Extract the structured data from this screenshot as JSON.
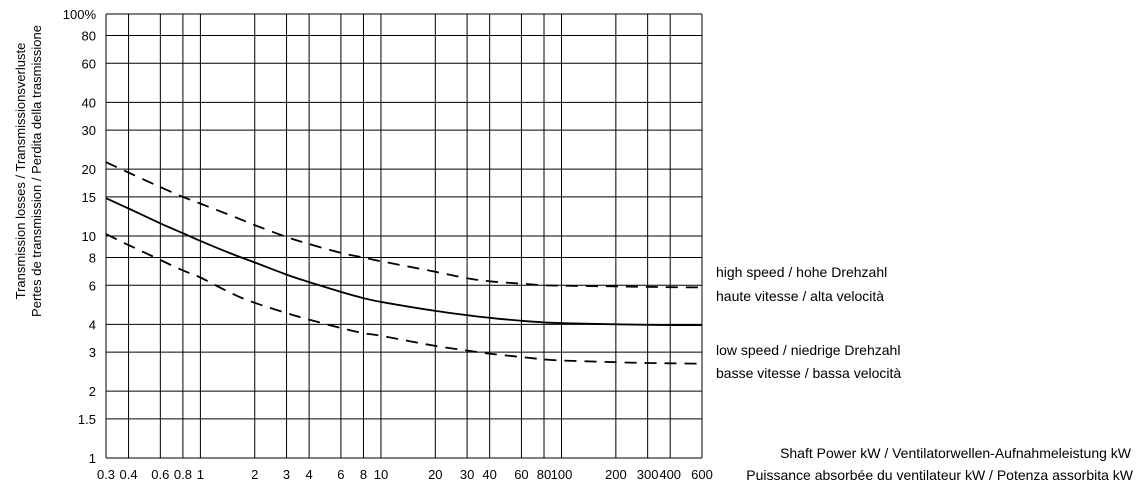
{
  "chart_data": {
    "type": "line",
    "x_scale": "log",
    "y_scale": "log",
    "xlim": [
      0.3,
      600
    ],
    "ylim": [
      1,
      100
    ],
    "grid": true,
    "x_ticks": [
      "0.3",
      "0.4",
      "0.6",
      "0.8",
      "1",
      "2",
      "3",
      "4",
      "6",
      "8",
      "10",
      "20",
      "30",
      "40",
      "60",
      "80",
      "100",
      "200",
      "300",
      "400",
      "600"
    ],
    "y_ticks": [
      "100%",
      "80",
      "60",
      "40",
      "30",
      "20",
      "15",
      "10",
      "8",
      "6",
      "4",
      "3",
      "2",
      "1.5",
      "1"
    ],
    "ylabel_line1": "Transmission losses / Transmissionsverluste",
    "ylabel_line2": "Pertes de transmission / Perdita della trasmissione",
    "xlabel_line1": "Shaft Power kW / Ventilatorwellen-Aufnahmeleistung kW",
    "xlabel_line2": "Puissance absorbée du ventilateur kW / Potenza assorbita kW",
    "high_speed_label_line1": "high speed / hohe Drehzahl",
    "high_speed_label_line2": "haute vitesse / alta velocità",
    "low_speed_label_line1": "low speed / niedrige Drehzahl",
    "low_speed_label_line2": "basse vitesse / bassa velocità",
    "series": [
      {
        "style": "dashed",
        "x": [
          0.3,
          0.4,
          0.6,
          0.8,
          1,
          1.5,
          2,
          3,
          4,
          6,
          8,
          10,
          20,
          30,
          40,
          60,
          80,
          100,
          200,
          300,
          400,
          600
        ],
        "y": [
          21.5,
          19.3,
          16.6,
          15.0,
          14.0,
          12.3,
          11.2,
          9.9,
          9.2,
          8.4,
          8.0,
          7.7,
          6.9,
          6.45,
          6.25,
          6.1,
          6.0,
          5.97,
          5.93,
          5.9,
          5.88,
          5.87
        ]
      },
      {
        "style": "solid",
        "x": [
          0.3,
          0.4,
          0.6,
          0.8,
          1,
          1.5,
          2,
          3,
          4,
          6,
          8,
          10,
          20,
          30,
          40,
          60,
          80,
          100,
          200,
          300,
          400,
          600
        ],
        "y": [
          14.8,
          13.3,
          11.4,
          10.3,
          9.5,
          8.3,
          7.6,
          6.7,
          6.2,
          5.6,
          5.25,
          5.05,
          4.6,
          4.4,
          4.28,
          4.15,
          4.08,
          4.05,
          4.0,
          3.98,
          3.97,
          3.97
        ]
      },
      {
        "style": "dashed",
        "x": [
          0.3,
          0.4,
          0.6,
          0.8,
          1,
          1.5,
          2,
          3,
          4,
          6,
          8,
          10,
          20,
          30,
          40,
          60,
          80,
          100,
          200,
          300,
          400,
          600
        ],
        "y": [
          10.2,
          9.1,
          7.8,
          7.0,
          6.5,
          5.5,
          5.0,
          4.5,
          4.2,
          3.85,
          3.65,
          3.55,
          3.2,
          3.05,
          2.95,
          2.85,
          2.78,
          2.75,
          2.7,
          2.68,
          2.67,
          2.66
        ]
      }
    ]
  }
}
